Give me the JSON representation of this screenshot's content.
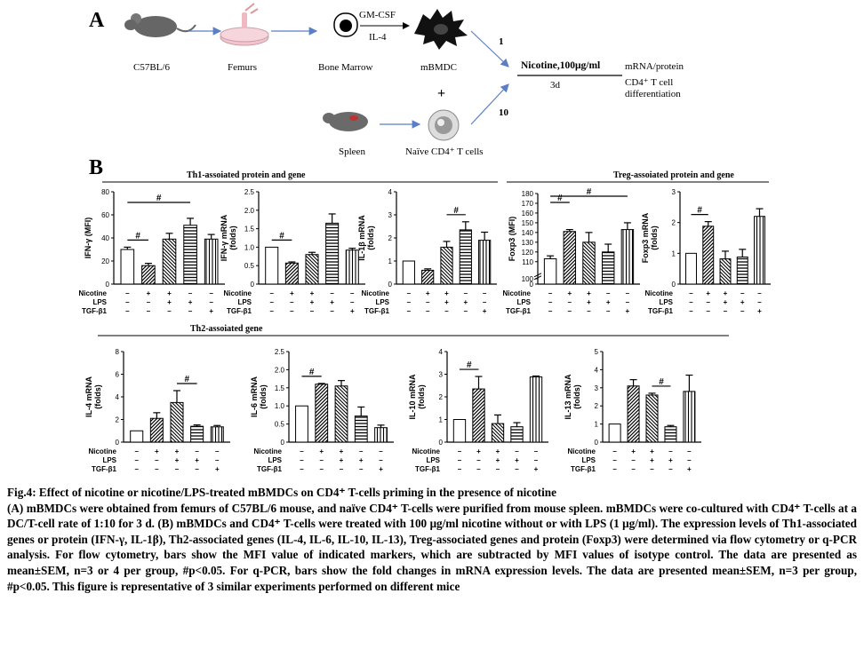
{
  "panelA": {
    "label": "A",
    "mouse_label": "C57BL/6",
    "femurs_label": "Femurs",
    "bone_marrow_label": "Bone Marrow",
    "gmcsf": "GM-CSF",
    "il4": "IL-4",
    "mbmdc_label": "mBMDC",
    "plus": "+",
    "spleen_label": "Spleen",
    "naive_label": "Naïve CD4⁺ T cells",
    "ratio_top": "1",
    "ratio_bottom": "10",
    "nicotine_box": "Nicotine,100μg/ml",
    "days": "3d",
    "readout": "mRNA/protein",
    "tcell1": "CD4⁺ T cell",
    "tcell2": "differentiation"
  },
  "panelB": {
    "label": "B",
    "th1_header": "Th1-assoiated protein and gene",
    "treg_header": "Treg-assoiated protein and gene",
    "th2_header": "Th2-assoiated gene",
    "row_labels": [
      "Nicotine",
      "LPS",
      "TGF-β1"
    ],
    "sig_mark": "#"
  },
  "chart_data": [
    {
      "type": "bar",
      "id": "ifng",
      "ylabel": "IFN-γ (MFI)",
      "ylim": [
        0,
        80
      ],
      "yticks": [
        0,
        20,
        40,
        60,
        80
      ],
      "values": [
        30,
        16,
        39,
        51,
        39
      ],
      "errors": [
        2,
        2,
        5,
        6,
        4
      ],
      "treatments": {
        "Nicotine": [
          "–",
          "+",
          "+",
          "–",
          "–"
        ],
        "LPS": [
          "–",
          "–",
          "+",
          "+",
          "–"
        ],
        "TGF-β1": [
          "–",
          "–",
          "–",
          "–",
          "+"
        ]
      },
      "sig": [
        [
          0,
          1
        ],
        [
          0,
          3
        ]
      ]
    },
    {
      "type": "bar",
      "id": "ifng_mrna",
      "ylabel": "IFN-γ mRNA\n(folds)",
      "ylim": [
        0,
        2.5
      ],
      "yticks": [
        0,
        0.5,
        1.0,
        1.5,
        2.0,
        2.5
      ],
      "values": [
        1.0,
        0.57,
        0.8,
        1.65,
        0.92
      ],
      "errors": [
        0,
        0.03,
        0.06,
        0.25,
        0.05
      ],
      "treatments": {
        "Nicotine": [
          "–",
          "+",
          "+",
          "–",
          "–"
        ],
        "LPS": [
          "–",
          "–",
          "+",
          "+",
          "–"
        ],
        "TGF-β1": [
          "–",
          "–",
          "–",
          "–",
          "+"
        ]
      },
      "sig": [
        [
          0,
          1
        ]
      ]
    },
    {
      "type": "bar",
      "id": "il1b_mrna",
      "ylabel": "IL-1β mRNA\n(folds)",
      "ylim": [
        0,
        4
      ],
      "yticks": [
        0,
        1,
        2,
        3,
        4
      ],
      "values": [
        1.0,
        0.6,
        1.6,
        2.35,
        1.9
      ],
      "errors": [
        0,
        0.06,
        0.25,
        0.35,
        0.35
      ],
      "treatments": {
        "Nicotine": [
          "–",
          "+",
          "+",
          "–",
          "–"
        ],
        "LPS": [
          "–",
          "–",
          "+",
          "+",
          "–"
        ],
        "TGF-β1": [
          "–",
          "–",
          "–",
          "–",
          "+"
        ]
      },
      "sig": [
        [
          2,
          3
        ]
      ]
    },
    {
      "type": "bar",
      "id": "foxp3",
      "ylabel": "Foxp3 (MFI)",
      "ylim": [
        0,
        180
      ],
      "yticks": [
        0,
        100,
        110,
        120,
        130,
        140,
        150,
        160,
        170,
        180
      ],
      "broken_axis": true,
      "values": [
        113,
        141,
        130,
        120,
        143
      ],
      "errors": [
        3,
        2,
        10,
        8,
        7
      ],
      "treatments": {
        "Nicotine": [
          "–",
          "+",
          "+",
          "–",
          "–"
        ],
        "LPS": [
          "–",
          "–",
          "+",
          "+",
          "–"
        ],
        "TGF-β1": [
          "–",
          "–",
          "–",
          "–",
          "+"
        ]
      },
      "sig": [
        [
          0,
          1
        ],
        [
          0,
          4
        ]
      ]
    },
    {
      "type": "bar",
      "id": "foxp3_mrna",
      "ylabel": "Foxp3 mRNA\n(folds)",
      "ylim": [
        0,
        3
      ],
      "yticks": [
        0,
        1,
        2,
        3
      ],
      "values": [
        1.0,
        1.88,
        0.82,
        0.88,
        2.2
      ],
      "errors": [
        0,
        0.15,
        0.25,
        0.25,
        0.25
      ],
      "treatments": {
        "Nicotine": [
          "–",
          "+",
          "+",
          "–",
          "–"
        ],
        "LPS": [
          "–",
          "–",
          "+",
          "+",
          "–"
        ],
        "TGF-β1": [
          "–",
          "–",
          "–",
          "–",
          "+"
        ]
      },
      "sig": [
        [
          0,
          1
        ]
      ]
    },
    {
      "type": "bar",
      "id": "il4_mrna",
      "ylabel": "IL-4 mRNA\n(folds)",
      "ylim": [
        0,
        8
      ],
      "yticks": [
        0,
        2,
        4,
        6,
        8
      ],
      "values": [
        1.0,
        2.1,
        3.5,
        1.4,
        1.35
      ],
      "errors": [
        0,
        0.5,
        1.05,
        0.12,
        0.12
      ],
      "treatments": {
        "Nicotine": [
          "–",
          "+",
          "+",
          "–",
          "–"
        ],
        "LPS": [
          "–",
          "–",
          "+",
          "+",
          "–"
        ],
        "TGF-β1": [
          "–",
          "–",
          "–",
          "–",
          "+"
        ]
      },
      "sig": [
        [
          2,
          3
        ]
      ]
    },
    {
      "type": "bar",
      "id": "il6_mrna",
      "ylabel": "IL-6 mRNA\n(folds)",
      "ylim": [
        0,
        2.5
      ],
      "yticks": [
        0,
        0.5,
        1.0,
        1.5,
        2.0,
        2.5
      ],
      "values": [
        1.0,
        1.6,
        1.55,
        0.72,
        0.4
      ],
      "errors": [
        0,
        0.02,
        0.15,
        0.25,
        0.07
      ],
      "treatments": {
        "Nicotine": [
          "–",
          "+",
          "+",
          "–",
          "–"
        ],
        "LPS": [
          "–",
          "–",
          "+",
          "+",
          "–"
        ],
        "TGF-β1": [
          "–",
          "–",
          "–",
          "–",
          "+"
        ]
      },
      "sig": [
        [
          0,
          1
        ]
      ]
    },
    {
      "type": "bar",
      "id": "il10_mrna",
      "ylabel": "IL-10 mRNA\n(folds)",
      "ylim": [
        0,
        4
      ],
      "yticks": [
        0,
        1,
        2,
        3,
        4
      ],
      "values": [
        1.0,
        2.35,
        0.82,
        0.68,
        2.88
      ],
      "errors": [
        0,
        0.55,
        0.38,
        0.18,
        0.04
      ],
      "treatments": {
        "Nicotine": [
          "–",
          "+",
          "+",
          "–",
          "–"
        ],
        "LPS": [
          "–",
          "–",
          "+",
          "+",
          "–"
        ],
        "TGF-β1": [
          "–",
          "–",
          "–",
          "–",
          "+"
        ]
      },
      "sig": [
        [
          0,
          1
        ]
      ]
    },
    {
      "type": "bar",
      "id": "il13_mrna",
      "ylabel": "IL-13 mRNA\n(folds)",
      "ylim": [
        0,
        5
      ],
      "yticks": [
        0,
        1,
        2,
        3,
        4,
        5
      ],
      "values": [
        1.0,
        3.1,
        2.6,
        0.85,
        2.8
      ],
      "errors": [
        0,
        0.35,
        0.1,
        0.07,
        0.9
      ],
      "treatments": {
        "Nicotine": [
          "–",
          "+",
          "+",
          "–",
          "–"
        ],
        "LPS": [
          "–",
          "–",
          "+",
          "+",
          "–"
        ],
        "TGF-β1": [
          "–",
          "–",
          "–",
          "–",
          "+"
        ]
      },
      "sig": [
        [
          2,
          3
        ]
      ]
    }
  ],
  "caption": {
    "title": "Fig.4: Effect of nicotine or nicotine/LPS-treated mBMDCs on CD4⁺ T-cells priming in the presence of nicotine",
    "body": "(A) mBMDCs were obtained from femurs of C57BL/6 mouse, and naïve CD4⁺ T-cells were purified from mouse spleen. mBMDCs were co-cultured with CD4⁺ T-cells at a DC/T-cell rate of 1:10 for 3 d. (B) mBMDCs and CD4⁺ T-cells were treated with 100 μg/ml nicotine without or with LPS (1 μg/ml). The expression levels of Th1-associated genes or protein (IFN-γ, IL-1β), Th2-associated genes (IL-4, IL-6, IL-10, IL-13), Treg-associated genes and protein (Foxp3) were determined via flow cytometry or q-PCR analysis. For flow cytometry, bars show the MFI value of indicated markers, which are subtracted by MFI values of isotype control. The data are presented as mean±SEM, n=3 or 4 per group, #p<0.05. For q-PCR, bars show the fold changes in mRNA expression levels. The data are presented mean±SEM, n=3 per group, #p<0.05. This figure is representative of 3 similar experiments performed on different mice"
  },
  "colors": {
    "ink": "#000000",
    "mouse": "#666666",
    "arrow": "#5b7fc4",
    "dish": "#e8a5b0"
  }
}
